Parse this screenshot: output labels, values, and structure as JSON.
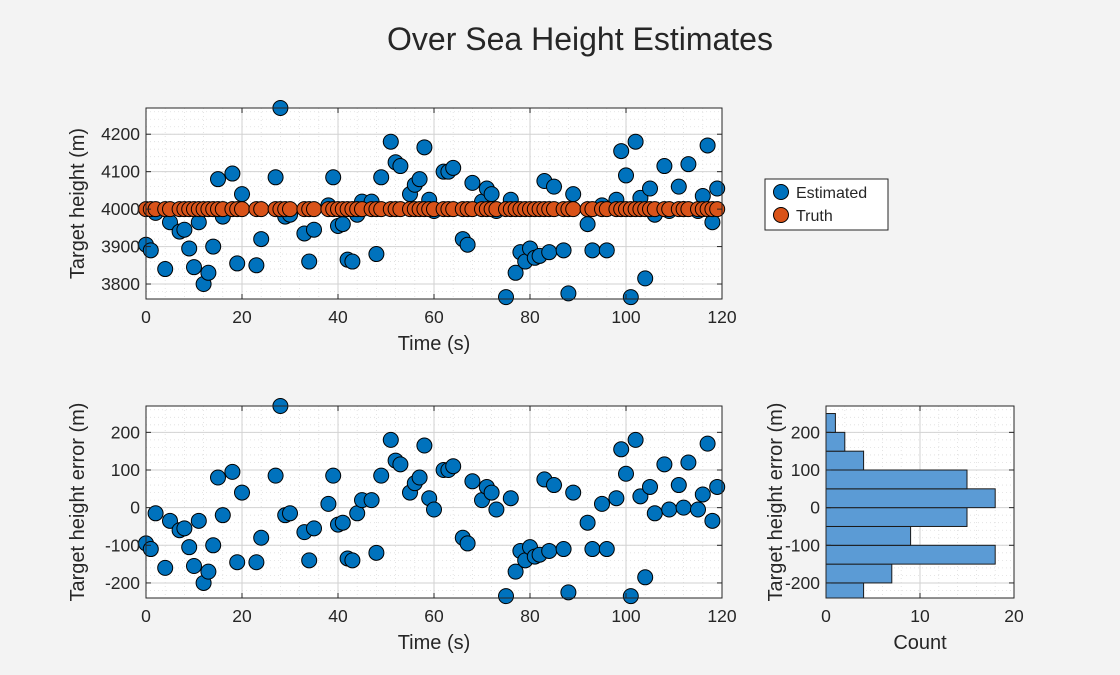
{
  "figure": {
    "title": "Over Sea Height Estimates"
  },
  "colors": {
    "estimated": "#0072BD",
    "truth": "#D95319",
    "hist_fill": "#5B9BD5",
    "background": "#f3f3f3"
  },
  "legend": {
    "position": "right",
    "entries": [
      "Estimated",
      "Truth"
    ]
  },
  "chart_data": [
    {
      "id": "height",
      "type": "scatter",
      "xlabel": "Time (s)",
      "ylabel": "Target height (m)",
      "xlim": [
        0,
        120
      ],
      "ylim": [
        3760,
        4270
      ],
      "xticks": [
        0,
        20,
        40,
        60,
        80,
        100,
        120
      ],
      "yticks": [
        3800,
        3900,
        4000,
        4100,
        4200
      ],
      "grid": true,
      "minor_grid": true,
      "series": [
        {
          "name": "Estimated",
          "x": [
            0,
            1,
            2,
            4,
            5,
            7,
            8,
            9,
            10,
            11,
            12,
            13,
            14,
            15,
            16,
            18,
            19,
            20,
            23,
            24,
            27,
            28,
            29,
            30,
            33,
            34,
            35,
            38,
            39,
            40,
            41,
            42,
            43,
            44,
            45,
            47,
            48,
            49,
            51,
            52,
            53,
            55,
            56,
            57,
            58,
            59,
            60,
            62,
            63,
            64,
            66,
            67,
            68,
            70,
            71,
            72,
            73,
            75,
            76,
            77,
            78,
            79,
            80,
            81,
            82,
            83,
            84,
            85,
            87,
            88,
            89,
            92,
            93,
            95,
            96,
            98,
            99,
            100,
            101,
            102,
            103,
            104,
            105,
            106,
            108,
            109,
            111,
            112,
            113,
            115,
            116,
            117,
            118,
            119
          ],
          "values": [
            3905,
            3890,
            3990,
            3840,
            3965,
            3940,
            3945,
            3895,
            3845,
            3965,
            3800,
            3830,
            3900,
            4080,
            3980,
            4095,
            3855,
            4040,
            3850,
            3920,
            4085,
            4270,
            3980,
            3985,
            3935,
            3860,
            3945,
            4010,
            4085,
            3955,
            3960,
            3865,
            3860,
            3985,
            4020,
            4020,
            3880,
            4085,
            4180,
            4125,
            4115,
            4040,
            4065,
            4080,
            4165,
            4025,
            3995,
            4100,
            4100,
            4110,
            3920,
            3905,
            4070,
            4020,
            4055,
            4040,
            3995,
            3765,
            4025,
            3830,
            3885,
            3860,
            3895,
            3870,
            3875,
            4075,
            3885,
            4060,
            3890,
            3775,
            4040,
            3960,
            3890,
            4010,
            3890,
            4025,
            4155,
            4090,
            3765,
            4180,
            4030,
            3815,
            4055,
            3985,
            4115,
            3995,
            4060,
            4000,
            4120,
            3995,
            4035,
            4170,
            3965,
            4055
          ]
        },
        {
          "name": "Truth",
          "x": [
            0,
            1,
            2,
            4,
            5,
            7,
            8,
            9,
            10,
            11,
            12,
            13,
            14,
            15,
            16,
            18,
            19,
            20,
            23,
            24,
            27,
            28,
            29,
            30,
            33,
            34,
            35,
            38,
            39,
            40,
            41,
            42,
            43,
            44,
            45,
            47,
            48,
            49,
            51,
            52,
            53,
            55,
            56,
            57,
            58,
            59,
            60,
            62,
            63,
            64,
            66,
            67,
            68,
            70,
            71,
            72,
            73,
            75,
            76,
            77,
            78,
            79,
            80,
            81,
            82,
            83,
            84,
            85,
            87,
            88,
            89,
            92,
            93,
            95,
            96,
            98,
            99,
            100,
            101,
            102,
            103,
            104,
            105,
            106,
            108,
            109,
            111,
            112,
            113,
            115,
            116,
            117,
            118,
            119
          ],
          "value": 4000
        }
      ]
    },
    {
      "id": "error",
      "type": "scatter",
      "xlabel": "Time (s)",
      "ylabel": "Target height error (m)",
      "xlim": [
        0,
        120
      ],
      "ylim": [
        -240,
        270
      ],
      "xticks": [
        0,
        20,
        40,
        60,
        80,
        100,
        120
      ],
      "yticks": [
        -200,
        -100,
        0,
        100,
        200
      ],
      "grid": true,
      "minor_grid": true,
      "series": [
        {
          "name": "Estimated",
          "x": [
            0,
            1,
            2,
            4,
            5,
            7,
            8,
            9,
            10,
            11,
            12,
            13,
            14,
            15,
            16,
            18,
            19,
            20,
            23,
            24,
            27,
            28,
            29,
            30,
            33,
            34,
            35,
            38,
            39,
            40,
            41,
            42,
            43,
            44,
            45,
            47,
            48,
            49,
            51,
            52,
            53,
            55,
            56,
            57,
            58,
            59,
            60,
            62,
            63,
            64,
            66,
            67,
            68,
            70,
            71,
            72,
            73,
            75,
            76,
            77,
            78,
            79,
            80,
            81,
            82,
            83,
            84,
            85,
            87,
            88,
            89,
            92,
            93,
            95,
            96,
            98,
            99,
            100,
            101,
            102,
            103,
            104,
            105,
            106,
            108,
            109,
            111,
            112,
            113,
            115,
            116,
            117,
            118,
            119
          ],
          "values": [
            -95,
            -110,
            -15,
            -160,
            -35,
            -60,
            -55,
            -105,
            -155,
            -35,
            -200,
            -170,
            -100,
            80,
            -20,
            95,
            -145,
            40,
            -145,
            -80,
            85,
            270,
            -20,
            -15,
            -65,
            -140,
            -55,
            10,
            85,
            -45,
            -40,
            -135,
            -140,
            -15,
            20,
            20,
            -120,
            85,
            180,
            125,
            115,
            40,
            65,
            80,
            165,
            25,
            -5,
            100,
            100,
            110,
            -80,
            -95,
            70,
            20,
            55,
            40,
            -5,
            -235,
            25,
            -170,
            -115,
            -140,
            -105,
            -130,
            -125,
            75,
            -115,
            60,
            -110,
            -225,
            40,
            -40,
            -110,
            10,
            -110,
            25,
            155,
            90,
            -235,
            180,
            30,
            -185,
            55,
            -15,
            115,
            -5,
            60,
            0,
            120,
            -5,
            35,
            170,
            -35,
            55
          ]
        }
      ]
    },
    {
      "id": "histogram",
      "type": "bar",
      "orientation": "horizontal",
      "xlabel": "Count",
      "ylabel": "Target height error (m)",
      "xlim": [
        0,
        20
      ],
      "ylim": [
        -240,
        270
      ],
      "xticks": [
        0,
        10,
        20
      ],
      "yticks": [
        -200,
        -100,
        0,
        100,
        200
      ],
      "bins": [
        {
          "from": -250,
          "to": -200,
          "count": 4
        },
        {
          "from": -200,
          "to": -150,
          "count": 7
        },
        {
          "from": -150,
          "to": -100,
          "count": 18
        },
        {
          "from": -100,
          "to": -50,
          "count": 9
        },
        {
          "from": -50,
          "to": 0,
          "count": 15
        },
        {
          "from": 0,
          "to": 50,
          "count": 18
        },
        {
          "from": 50,
          "to": 100,
          "count": 15
        },
        {
          "from": 100,
          "to": 150,
          "count": 4
        },
        {
          "from": 150,
          "to": 200,
          "count": 2
        },
        {
          "from": 200,
          "to": 250,
          "count": 1
        }
      ]
    }
  ]
}
